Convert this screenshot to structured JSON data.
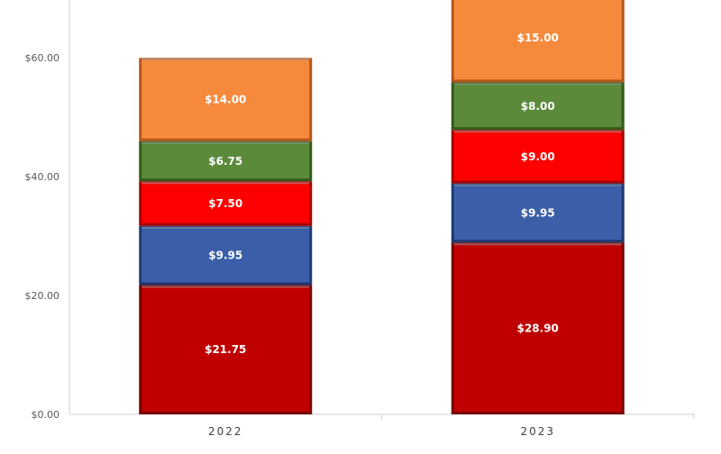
{
  "chart_data": {
    "type": "bar",
    "stacked": true,
    "categories": [
      "2022",
      "2023"
    ],
    "series": [
      {
        "values": [
          21.75,
          28.9
        ],
        "labels": [
          "$21.75",
          "$28.90"
        ],
        "color": "#c00000",
        "edge": "#7a0000"
      },
      {
        "values": [
          9.95,
          9.95
        ],
        "labels": [
          "$9.95",
          "$9.95"
        ],
        "color": "#3a5fa8",
        "edge": "#1f3a70"
      },
      {
        "values": [
          7.5,
          9.0
        ],
        "labels": [
          "$7.50",
          "$9.00"
        ],
        "color": "#ff0000",
        "edge": "#a80000"
      },
      {
        "values": [
          6.75,
          8.0
        ],
        "labels": [
          "$6.75",
          "$8.00"
        ],
        "color": "#5b8a3a",
        "edge": "#345a1c"
      },
      {
        "values": [
          14.0,
          15.0
        ],
        "labels": [
          "$14.00",
          "$15.00"
        ],
        "color": "#f58a3c",
        "edge": "#b5561a"
      }
    ],
    "yticks": [
      {
        "value": 0,
        "label": "$0.00"
      },
      {
        "value": 20,
        "label": "$20.00"
      },
      {
        "value": 40,
        "label": "$40.00"
      },
      {
        "value": 60,
        "label": "$60.00"
      }
    ],
    "ylim": [
      0,
      70
    ],
    "grid": false,
    "title": "",
    "xlabel": "",
    "ylabel": ""
  }
}
